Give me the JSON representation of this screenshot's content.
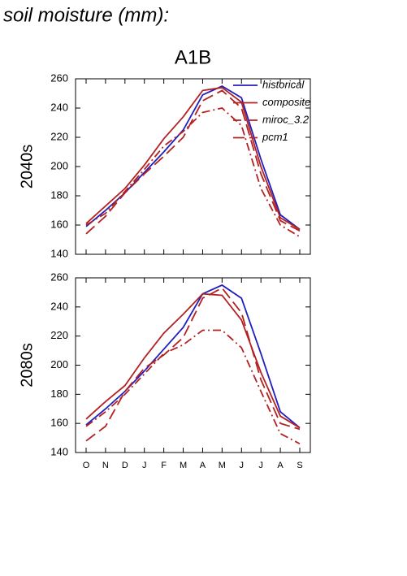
{
  "heading": "soil moisture (mm):",
  "chart_data": [
    {
      "type": "line",
      "title": "A1B",
      "ylabel": "2040s",
      "ylim": [
        140,
        260
      ],
      "yticks": [
        140,
        160,
        180,
        200,
        220,
        240,
        260
      ],
      "legend": "upper right",
      "series": [
        {
          "name": "historical",
          "color": "#1f1fbf",
          "dash": "solid",
          "values": [
            159,
            170,
            182,
            196,
            210,
            225,
            249,
            255,
            247,
            205,
            167,
            157
          ]
        },
        {
          "name": "composite",
          "color": "#b22222",
          "dash": "solid",
          "values": [
            161,
            173,
            185,
            201,
            219,
            234,
            252,
            254,
            244,
            200,
            165,
            157
          ]
        },
        {
          "name": "miroc_3.2",
          "color": "#b22222",
          "dash": "dashdot",
          "values": [
            160,
            168,
            183,
            198,
            214,
            224,
            237,
            240,
            228,
            185,
            160,
            152
          ]
        },
        {
          "name": "pcm1",
          "color": "#b22222",
          "dash": "dash",
          "values": [
            154,
            166,
            182,
            195,
            207,
            220,
            245,
            252,
            240,
            195,
            163,
            156
          ]
        }
      ]
    },
    {
      "type": "line",
      "ylabel": "2080s",
      "categories": [
        "O",
        "N",
        "D",
        "J",
        "F",
        "M",
        "A",
        "M",
        "J",
        "J",
        "A",
        "S"
      ],
      "ylim": [
        140,
        260
      ],
      "yticks": [
        140,
        160,
        180,
        200,
        220,
        240,
        260
      ],
      "series": [
        {
          "color": "#1f1fbf",
          "dash": "solid",
          "values": [
            159,
            170,
            182,
            196,
            211,
            226,
            249,
            255,
            246,
            208,
            168,
            157
          ]
        },
        {
          "color": "#b22222",
          "dash": "solid",
          "values": [
            163,
            175,
            186,
            205,
            222,
            235,
            249,
            248,
            231,
            195,
            165,
            157
          ]
        },
        {
          "color": "#b22222",
          "dash": "dashdot",
          "values": [
            158,
            168,
            180,
            194,
            208,
            214,
            224,
            224,
            212,
            182,
            153,
            146
          ]
        },
        {
          "color": "#b22222",
          "dash": "dash",
          "values": [
            148,
            158,
            182,
            198,
            207,
            219,
            246,
            253,
            236,
            190,
            160,
            156
          ]
        }
      ]
    }
  ]
}
